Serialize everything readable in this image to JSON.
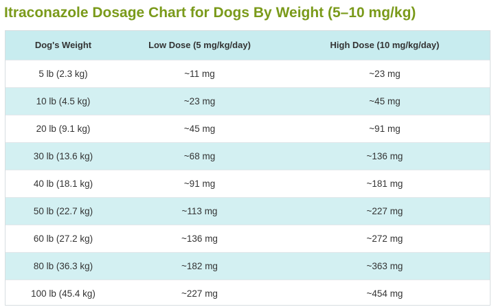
{
  "title": "Itraconazole Dosage Chart for Dogs By Weight (5–10 mg/kg)",
  "colors": {
    "title": "#7a9a1a",
    "header_bg": "#c8ecef",
    "stripe_bg": "#d3f0f2",
    "row_bg": "#ffffff",
    "text": "#333333"
  },
  "table": {
    "headers": [
      "Dog's Weight",
      "Low Dose (5 mg/kg/day)",
      "High Dose (10 mg/kg/day)"
    ],
    "rows": [
      [
        "5 lb (2.3 kg)",
        "~11 mg",
        "~23 mg"
      ],
      [
        "10 lb (4.5 kg)",
        "~23 mg",
        "~45 mg"
      ],
      [
        "20 lb (9.1 kg)",
        "~45 mg",
        "~91 mg"
      ],
      [
        "30 lb (13.6 kg)",
        "~68 mg",
        "~136 mg"
      ],
      [
        "40 lb (18.1 kg)",
        "~91 mg",
        "~181 mg"
      ],
      [
        "50 lb (22.7 kg)",
        "~113 mg",
        "~227 mg"
      ],
      [
        "60 lb (27.2 kg)",
        "~136 mg",
        "~272 mg"
      ],
      [
        "80 lb (36.3 kg)",
        "~182 mg",
        "~363 mg"
      ],
      [
        "100 lb (45.4 kg)",
        "~227 mg",
        "~454 mg"
      ]
    ]
  }
}
